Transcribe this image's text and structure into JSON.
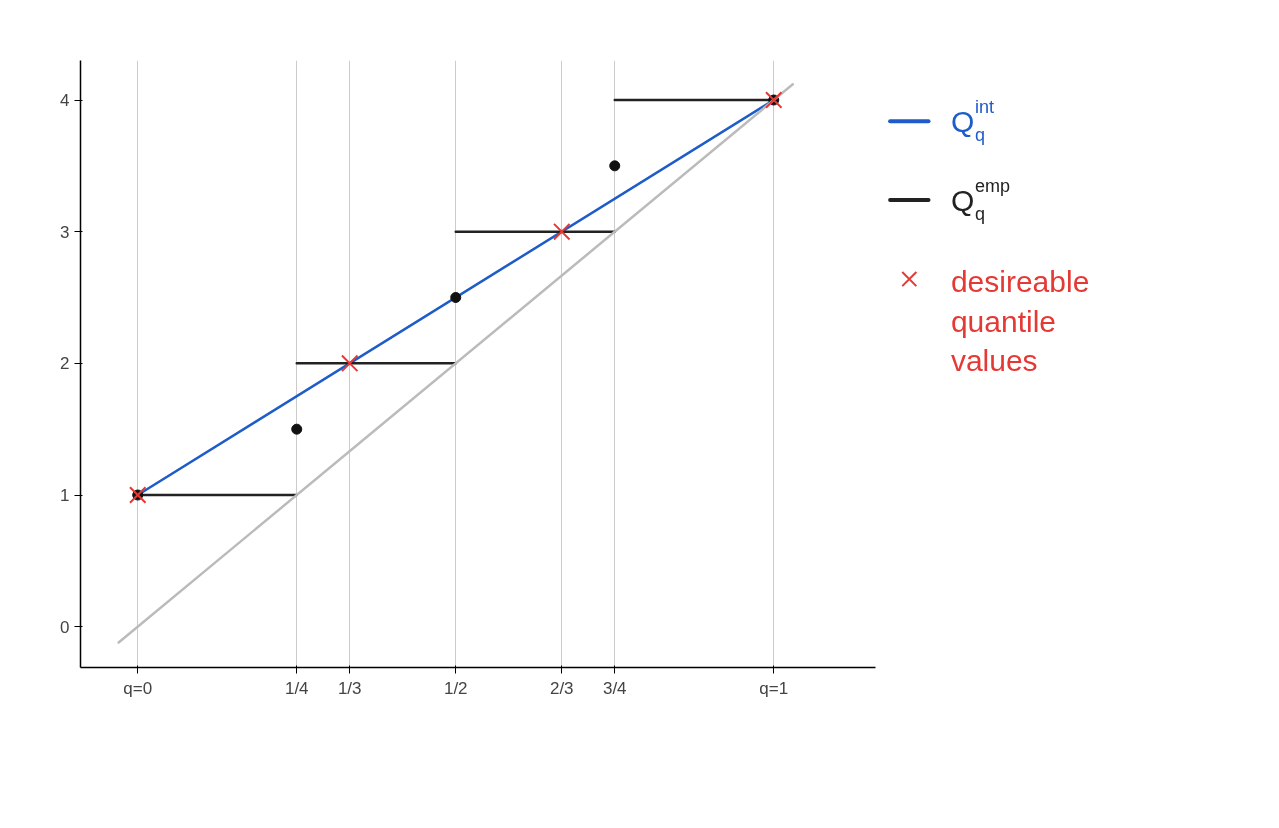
{
  "chart_data": {
    "type": "line",
    "xlim": [
      -0.09,
      1.16
    ],
    "ylim": [
      -0.31,
      4.3
    ],
    "xticks": [
      {
        "value": 0,
        "label": "q=0"
      },
      {
        "value": 0.25,
        "label": "1/4"
      },
      {
        "value": 0.3333,
        "label": "1/3"
      },
      {
        "value": 0.5,
        "label": "1/2"
      },
      {
        "value": 0.6667,
        "label": "2/3"
      },
      {
        "value": 0.75,
        "label": "3/4"
      },
      {
        "value": 1,
        "label": "q=1"
      }
    ],
    "yticks": [
      0,
      1,
      2,
      3,
      4
    ],
    "grid": "x",
    "legend": "right",
    "series": [
      {
        "name": "Q$^{int}$$_{q}$",
        "color": "#1d5cc9",
        "x": [
          0,
          1
        ],
        "values": [
          1,
          4
        ]
      },
      {
        "name": "Q$^{emp}$$_{q}$",
        "color": "#222222",
        "x": [
          0,
          0.25,
          null,
          0.25,
          0.5,
          null,
          0.5,
          0.75,
          null,
          0.75,
          1
        ],
        "values": [
          1,
          1,
          null,
          2,
          2,
          null,
          3,
          3,
          null,
          4,
          4
        ]
      },
      {
        "type": "scatter",
        "marker": "circle",
        "color": "#111111",
        "x": [
          0,
          0.25,
          0.5,
          0.75,
          1
        ],
        "values": [
          1,
          1.5,
          2.5,
          3.5,
          4
        ]
      },
      {
        "color": "#bbbbbb",
        "x": [
          -0.03,
          1.03
        ],
        "values": [
          -0.12,
          4.12
        ]
      },
      {
        "name": "desireable quantile values",
        "type": "scatter",
        "marker": "cross",
        "color": "#e53935",
        "x": [
          0,
          0.3333,
          0.6667,
          1
        ],
        "values": [
          1,
          2,
          3,
          4
        ]
      }
    ]
  }
}
